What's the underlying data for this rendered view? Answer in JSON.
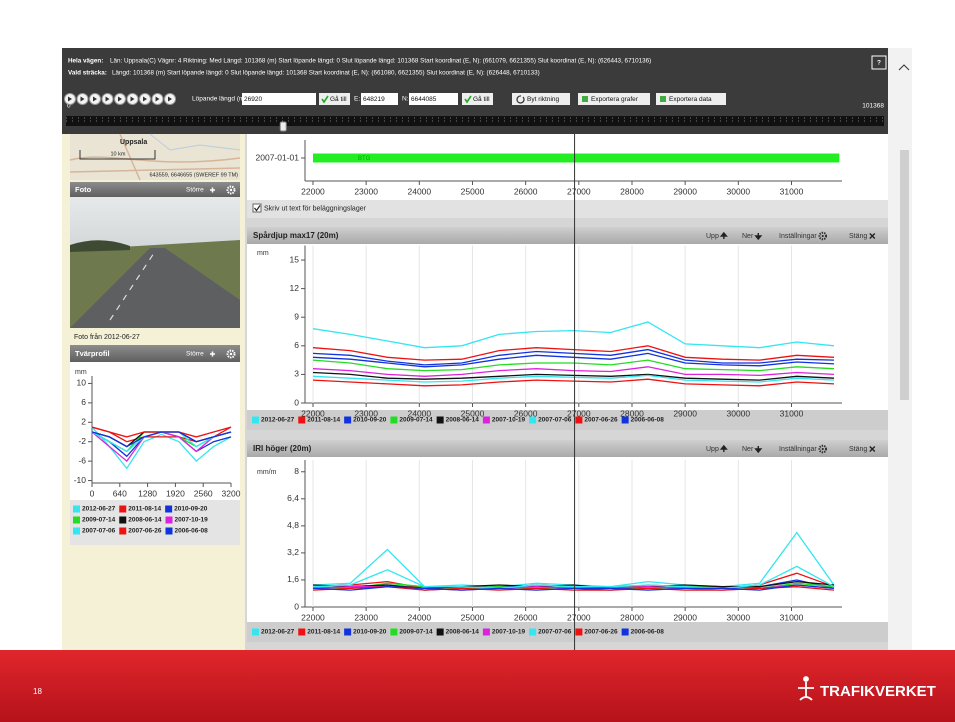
{
  "header": {
    "whole_road_label": "Hela vägen:",
    "whole_road_info": "Län: Uppsala(C)  Vägnr: 4  Riktning: Med  Längd: 101368 (m)  Start löpande längd: 0  Slut löpande längd: 101368  Start koordinat (E, N): (661079, 6621355)  Slut koordinat (E, N): (626443, 6710136)",
    "selection_label": "Vald sträcka:",
    "selection_info": "Längd: 101368 (m)  Start löpande längd: 0  Slut löpande längd: 101368  Start koordinat (E, N): (661080, 6621355)  Slut koordinat (E, N): (626448, 6710133)",
    "help": "?"
  },
  "toolbar": {
    "running_length_label": "Löpande längd (m):",
    "running_length": 26920,
    "go_to": "Gå till",
    "e_label": "E:",
    "e_value": "648219",
    "n_label": "N:",
    "n_value": "6644085",
    "go_to_2": "Gå till",
    "switch_direction": "Byt riktning",
    "export_graphs": "Exportera grafer",
    "export_data": "Exportera data",
    "slider_min": 0,
    "slider_max": 101368
  },
  "map": {
    "city": "Uppsala",
    "scale": "10 km",
    "coordinates": "643559, 6646655 (SWEREF 99 TM)"
  },
  "photo_panel": {
    "title": "Foto",
    "larger": "Större",
    "caption": "Foto från 2012-06-27"
  },
  "profile_panel": {
    "title": "Tvärprofil",
    "larger": "Större"
  },
  "layers_checkbox": "Skriv ut text för beläggningslager",
  "footer": {
    "page": "18",
    "brand": "TRAFIKVERKET"
  },
  "chart_data": [
    {
      "type": "range-bar",
      "categories": [
        "2007-01-01"
      ],
      "series": [
        {
          "name": "BTG",
          "color": "#22ee22",
          "start": [
            22000
          ],
          "end": [
            31900
          ]
        }
      ],
      "xlim": [
        21850,
        31950
      ],
      "xticks": [
        22000,
        23000,
        24000,
        25000,
        26000,
        27000,
        28000,
        29000,
        30000,
        31000
      ]
    },
    {
      "type": "line",
      "title": "Spårdjup max17 (20m)",
      "controls": [
        "Upp",
        "Ner",
        "Inställningar",
        "Stäng"
      ],
      "y_label": "mm",
      "grid": true,
      "xlim": [
        21850,
        31950
      ],
      "xticks": [
        22000,
        23000,
        24000,
        25000,
        26000,
        27000,
        28000,
        29000,
        30000,
        31000
      ],
      "ylim": [
        0,
        16
      ],
      "yticks": [
        0,
        3,
        6,
        9,
        12,
        15
      ],
      "x": [
        22000,
        22700,
        23400,
        24100,
        24800,
        25500,
        26200,
        26900,
        27600,
        28300,
        29000,
        29700,
        30400,
        31100,
        31800
      ],
      "series": [
        {
          "name": "2012-06-27",
          "color": "#33e6f0",
          "values": [
            7.8,
            7.2,
            6.5,
            5.8,
            6,
            7.2,
            7.5,
            7.6,
            7.4,
            8.5,
            6.2,
            6,
            5.8,
            6.4,
            6
          ]
        },
        {
          "name": "2011-08-14",
          "color": "#ee1111",
          "values": [
            5.8,
            5.5,
            4.8,
            4.5,
            4.6,
            5.5,
            5.8,
            5.6,
            5.4,
            6,
            4.8,
            4.6,
            4.5,
            5,
            4.8
          ]
        },
        {
          "name": "2010-09-20",
          "color": "#1133dd",
          "values": [
            5.2,
            5,
            4.4,
            4,
            4.2,
            5,
            5.4,
            5.2,
            5,
            5.6,
            4.5,
            4.2,
            4.2,
            4.6,
            4.5
          ]
        },
        {
          "name": "2009-07-14",
          "color": "#22dd22",
          "values": [
            4.5,
            4.2,
            3.6,
            3.4,
            3.5,
            4,
            4.2,
            4.2,
            4,
            4.5,
            3.6,
            3.5,
            3.4,
            3.8,
            3.6
          ]
        },
        {
          "name": "2008-06-14",
          "color": "#111111",
          "values": [
            3.2,
            3,
            2.6,
            2.5,
            2.6,
            2.8,
            3,
            2.9,
            2.8,
            3,
            2.6,
            2.5,
            2.4,
            2.8,
            2.6
          ]
        },
        {
          "name": "2007-10-19",
          "color": "#dd22dd",
          "values": [
            3.6,
            3.4,
            3,
            2.8,
            3,
            3.4,
            3.6,
            3.4,
            3.3,
            3.8,
            3,
            3,
            2.9,
            3.2,
            3
          ]
        },
        {
          "name": "2007-07-06",
          "color": "#33e6f0",
          "values": [
            2.8,
            2.6,
            2.4,
            2.2,
            2.3,
            2.6,
            2.8,
            2.7,
            2.6,
            2.9,
            2.4,
            2.3,
            2.2,
            2.6,
            2.4
          ]
        },
        {
          "name": "2007-06-26",
          "color": "#ee1111",
          "values": [
            2.4,
            2.2,
            2,
            1.8,
            1.9,
            2.2,
            2.4,
            2.3,
            2.2,
            2.5,
            2,
            1.9,
            1.8,
            2.2,
            2
          ]
        },
        {
          "name": "2006-06-08",
          "color": "#1133dd",
          "values": [
            4.8,
            4.6,
            4.2,
            3.8,
            4,
            4.6,
            5,
            4.8,
            4.6,
            5.2,
            4.2,
            4,
            3.9,
            4.3,
            4.1
          ]
        }
      ]
    },
    {
      "type": "line",
      "title": "IRI höger (20m)",
      "controls": [
        "Upp",
        "Ner",
        "Inställningar",
        "Stäng"
      ],
      "y_label": "mm/m",
      "grid": true,
      "xlim": [
        21850,
        31950
      ],
      "xticks": [
        22000,
        23000,
        24000,
        25000,
        26000,
        27000,
        28000,
        29000,
        30000,
        31000
      ],
      "ylim": [
        0,
        8.4
      ],
      "yticks": [
        0,
        {
          "value": 1.6,
          "label": "1,6"
        },
        {
          "value": 3.2,
          "label": "3,2"
        },
        {
          "value": 4.8,
          "label": "4,8"
        },
        {
          "value": 6.4,
          "label": "6,4"
        },
        8
      ],
      "x": [
        22000,
        22700,
        23400,
        24100,
        24800,
        25500,
        26200,
        26900,
        27600,
        28300,
        29000,
        29700,
        30400,
        31100,
        31800
      ],
      "series": [
        {
          "name": "2012-06-27",
          "color": "#33e6f0",
          "values": [
            1.3,
            1.4,
            3.4,
            1.2,
            1.3,
            1.2,
            1.4,
            1.3,
            1.2,
            1.5,
            1.3,
            1.2,
            1.4,
            4.4,
            1.3
          ]
        },
        {
          "name": "2011-08-14",
          "color": "#ee1111",
          "values": [
            1.2,
            1.3,
            1.5,
            1.1,
            1.2,
            1.1,
            1.3,
            1.2,
            1.1,
            1.3,
            1.2,
            1.1,
            1.3,
            2,
            1.2
          ]
        },
        {
          "name": "2010-09-20",
          "color": "#1133dd",
          "values": [
            1.1,
            1.2,
            1.3,
            1,
            1.1,
            1.2,
            1.2,
            1.1,
            1,
            1.2,
            1.1,
            1.1,
            1.2,
            1.6,
            1.1
          ]
        },
        {
          "name": "2009-07-14",
          "color": "#22dd22",
          "values": [
            1.2,
            1.1,
            1.4,
            1.2,
            1.1,
            1.2,
            1.1,
            1.2,
            1.2,
            1.1,
            1.2,
            1.2,
            1.1,
            1.4,
            1.2
          ]
        },
        {
          "name": "2008-06-14",
          "color": "#111111",
          "values": [
            1.3,
            1.2,
            1.3,
            1.1,
            1.2,
            1.3,
            1.2,
            1.3,
            1.1,
            1.2,
            1.3,
            1.2,
            1.2,
            1.5,
            1.3
          ]
        },
        {
          "name": "2007-10-19",
          "color": "#dd22dd",
          "values": [
            1.1,
            1.2,
            1.2,
            1.1,
            1,
            1.1,
            1.2,
            1.1,
            1.1,
            1.2,
            1.1,
            1,
            1.1,
            1.3,
            1.1
          ]
        },
        {
          "name": "2007-07-06",
          "color": "#33e6f0",
          "values": [
            1.2,
            1.3,
            2.2,
            1.2,
            1.2,
            1.1,
            1.3,
            1.2,
            1.2,
            1.3,
            1.2,
            1.1,
            1.3,
            2.4,
            1.2
          ]
        },
        {
          "name": "2007-06-26",
          "color": "#ee1111",
          "values": [
            1,
            1.1,
            1.2,
            1,
            1.1,
            1,
            1.1,
            1,
            1,
            1.1,
            1,
            1,
            1.1,
            1.2,
            1
          ]
        },
        {
          "name": "2006-06-08",
          "color": "#1133dd",
          "values": [
            1.1,
            1,
            1.2,
            1.1,
            1,
            1.1,
            1,
            1.1,
            1.1,
            1,
            1.1,
            1.1,
            1,
            1.3,
            1.1
          ]
        }
      ]
    },
    {
      "type": "line",
      "y_label": "mm",
      "grid": false,
      "xlim": [
        0,
        3200
      ],
      "xticks": [
        0,
        640,
        1280,
        1920,
        2560,
        3200
      ],
      "ylim": [
        -10.5,
        10.5
      ],
      "yticks": [
        -10,
        -6,
        -2,
        2,
        6,
        10
      ],
      "x": [
        0,
        400,
        800,
        1200,
        1600,
        2000,
        2400,
        2800,
        3200
      ],
      "series": [
        {
          "name": "2012-06-27",
          "color": "#33e6f0",
          "values": [
            1,
            -3,
            -7.5,
            -2,
            -0.5,
            -2,
            -6,
            -3,
            -1
          ]
        },
        {
          "name": "2011-08-14",
          "color": "#ee1111",
          "values": [
            1,
            0,
            -2,
            -1,
            -1,
            -1,
            -2,
            -1,
            1
          ]
        },
        {
          "name": "2010-09-20",
          "color": "#1133dd",
          "values": [
            0,
            -2,
            -5,
            -1,
            0,
            -1,
            -4,
            -2,
            -1
          ]
        },
        {
          "name": "2009-07-14",
          "color": "#22dd22",
          "values": [
            0,
            -2,
            -4,
            0,
            0,
            -1,
            -3,
            -1,
            0
          ]
        },
        {
          "name": "2008-06-14",
          "color": "#111111",
          "values": [
            0,
            -1,
            -3,
            0,
            0,
            0,
            -2,
            -1,
            0
          ]
        },
        {
          "name": "2007-10-19",
          "color": "#dd22dd",
          "values": [
            0,
            -3,
            -6,
            -1,
            0,
            -1,
            -4,
            -1,
            0
          ]
        },
        {
          "name": "2007-07-06",
          "color": "#33e6f0",
          "values": [
            0,
            -2,
            -4,
            -1,
            0,
            0,
            -3,
            -1,
            0
          ]
        },
        {
          "name": "2007-06-26",
          "color": "#ee1111",
          "values": [
            1,
            0,
            -1,
            0,
            0,
            0,
            -1,
            0,
            1
          ]
        },
        {
          "name": "2006-06-08",
          "color": "#1133dd",
          "values": [
            0,
            -1,
            -3,
            -1,
            0,
            0,
            -2,
            -1,
            0
          ]
        }
      ]
    }
  ]
}
